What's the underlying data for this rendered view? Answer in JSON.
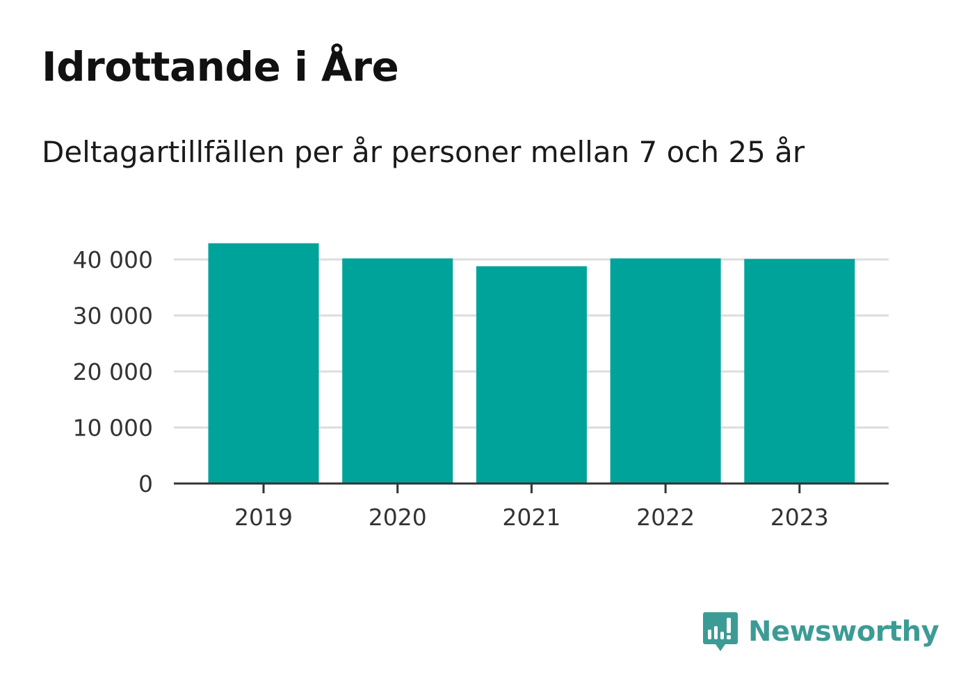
{
  "header": {
    "title": "Idrottande i Åre",
    "subtitle": "Deltagartillfällen per år personer mellan 7 och 25 år"
  },
  "branding": {
    "name": "Newsworthy",
    "logo_icon": "bar-chart-speech-bubble-icon",
    "color": "#3c9b95"
  },
  "chart_data": {
    "type": "bar",
    "categories": [
      "2019",
      "2020",
      "2021",
      "2022",
      "2023"
    ],
    "values": [
      42900,
      40200,
      38800,
      40200,
      40100
    ],
    "ylim": [
      0,
      40000
    ],
    "yticks": [
      0,
      10000,
      20000,
      30000,
      40000
    ],
    "ytick_labels": [
      "0",
      "10 000",
      "20 000",
      "30 000",
      "40 000"
    ],
    "grid": true,
    "bar_color": "#00a39a",
    "grid_color": "#dddddd",
    "axis_color": "#333333"
  }
}
